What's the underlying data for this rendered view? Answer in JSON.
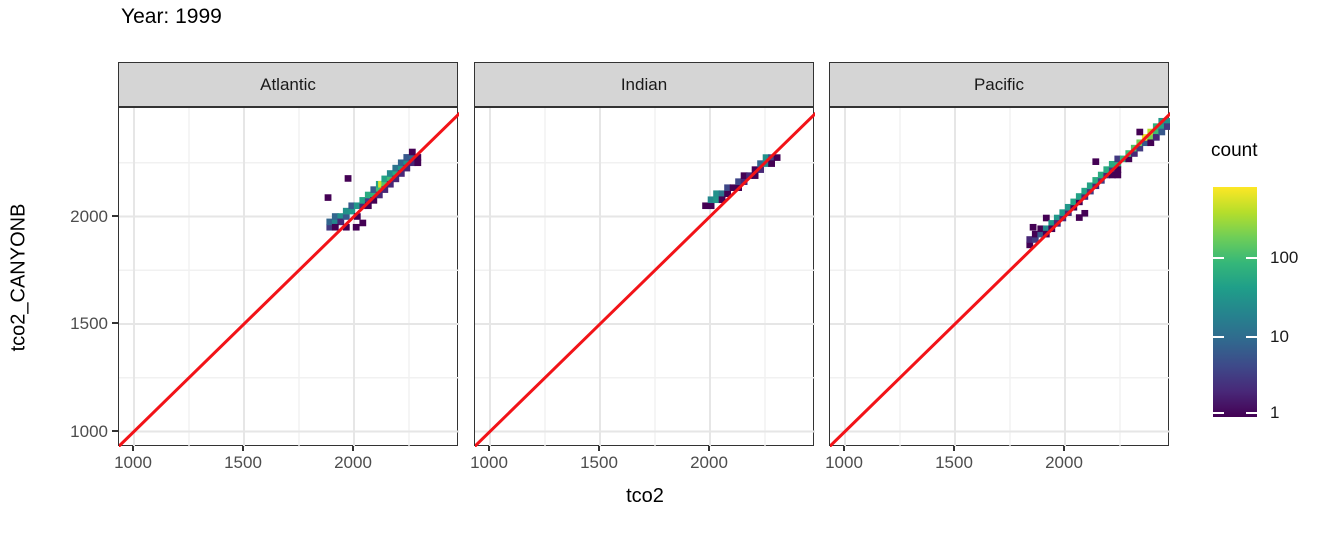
{
  "title": "Year: 1999",
  "colors": {
    "strip_bg": "#d5d5d5",
    "panel_border": "#333333",
    "grid_major": "#e6e6e6",
    "grid_minor": "#f1f1f1",
    "tick_text": "#4d4d4d",
    "reference_line_red": "#f21318",
    "viridis": [
      "#440154",
      "#482878",
      "#3e4989",
      "#31688e",
      "#26828e",
      "#1f9e89",
      "#35b779",
      "#6ece58",
      "#b5de2b",
      "#fde725"
    ]
  },
  "chart_data": {
    "type": "heatmap",
    "variant": "2d-bin-count (geom_bin2d), 3 facets",
    "title": "Year: 1999",
    "xlabel": "tco2",
    "ylabel": "tco2_CANYONB",
    "facet_labels": [
      "Atlantic",
      "Indian",
      "Pacific"
    ],
    "x_ticks": [
      1000,
      1500,
      2000
    ],
    "y_ticks": [
      1000,
      1500,
      2000
    ],
    "x_minor_ticks": [
      1250,
      1750,
      2250
    ],
    "y_minor_ticks": [
      1250,
      1750,
      2250
    ],
    "xlim": [
      930,
      2480
    ],
    "ylim": [
      930,
      2505
    ],
    "grid": true,
    "bin_width": 25,
    "reference_line": {
      "type": "identity",
      "equation": "y = x",
      "color": "#f21318"
    },
    "legend": {
      "title": "count",
      "position": "right",
      "scale": "log10",
      "colormap": "viridis",
      "max_count": 600,
      "ticks": [
        {
          "label": "100",
          "frac_from_top": 0.309
        },
        {
          "label": "10",
          "frac_from_top": 0.652
        },
        {
          "label": "1",
          "frac_from_top": 0.983
        }
      ]
    },
    "facets": [
      {
        "label": "Atlantic",
        "bins": [
          [
            1890,
            1950,
            3
          ],
          [
            1890,
            1975,
            8
          ],
          [
            1915,
            1975,
            20
          ],
          [
            1915,
            2000,
            8
          ],
          [
            1940,
            2000,
            25
          ],
          [
            1940,
            1975,
            2
          ],
          [
            1965,
            2000,
            6
          ],
          [
            1965,
            2025,
            25
          ],
          [
            1990,
            2025,
            30
          ],
          [
            1990,
            2050,
            6
          ],
          [
            2015,
            2050,
            30
          ],
          [
            2040,
            2050,
            2
          ],
          [
            2040,
            2075,
            40
          ],
          [
            2065,
            2075,
            3
          ],
          [
            2065,
            2100,
            50
          ],
          [
            2090,
            2100,
            60
          ],
          [
            2090,
            2125,
            6
          ],
          [
            2115,
            2125,
            80
          ],
          [
            2115,
            2150,
            40
          ],
          [
            2125,
            2150,
            400
          ],
          [
            2140,
            2150,
            100
          ],
          [
            2140,
            2175,
            40
          ],
          [
            2165,
            2175,
            80
          ],
          [
            2165,
            2200,
            20
          ],
          [
            2190,
            2200,
            50
          ],
          [
            2190,
            2225,
            12
          ],
          [
            2215,
            2225,
            30
          ],
          [
            2215,
            2250,
            8
          ],
          [
            2240,
            2250,
            25
          ],
          [
            2240,
            2275,
            6
          ],
          [
            2265,
            2275,
            8
          ],
          [
            1915,
            1950,
            1
          ],
          [
            1965,
            1950,
            1
          ],
          [
            2010,
            1950,
            1
          ],
          [
            2040,
            1970,
            1
          ],
          [
            2015,
            2000,
            1
          ],
          [
            2065,
            2050,
            1
          ],
          [
            2090,
            2075,
            1
          ],
          [
            2115,
            2100,
            2
          ],
          [
            2140,
            2125,
            2
          ],
          [
            2165,
            2150,
            2
          ],
          [
            2190,
            2175,
            2
          ],
          [
            2215,
            2200,
            2
          ],
          [
            2240,
            2225,
            2
          ],
          [
            2265,
            2250,
            2
          ],
          [
            2290,
            2275,
            1
          ],
          [
            2265,
            2300,
            1
          ],
          [
            2290,
            2250,
            1
          ],
          [
            1973,
            2177,
            1
          ],
          [
            1882,
            2088,
            1
          ]
        ]
      },
      {
        "label": "Indian",
        "bins": [
          [
            1980,
            2050,
            1
          ],
          [
            2005,
            2050,
            1
          ],
          [
            2005,
            2078,
            20
          ],
          [
            2030,
            2078,
            30
          ],
          [
            2030,
            2106,
            25
          ],
          [
            2055,
            2106,
            12
          ],
          [
            2055,
            2078,
            1
          ],
          [
            2080,
            2106,
            1
          ],
          [
            2080,
            2134,
            4
          ],
          [
            2105,
            2134,
            1
          ],
          [
            2130,
            2134,
            1
          ],
          [
            2130,
            2162,
            4
          ],
          [
            2155,
            2162,
            2
          ],
          [
            2155,
            2190,
            1
          ],
          [
            2180,
            2190,
            2
          ],
          [
            2205,
            2190,
            1
          ],
          [
            2205,
            2218,
            1
          ],
          [
            2230,
            2218,
            2
          ],
          [
            2230,
            2246,
            8
          ],
          [
            2255,
            2246,
            20
          ],
          [
            2255,
            2274,
            25
          ],
          [
            2280,
            2274,
            4
          ],
          [
            2280,
            2246,
            1
          ],
          [
            2305,
            2274,
            1
          ]
        ]
      },
      {
        "label": "Pacific",
        "bins": [
          [
            1840,
            1868,
            1
          ],
          [
            1840,
            1893,
            2
          ],
          [
            1865,
            1893,
            3
          ],
          [
            1865,
            1918,
            1
          ],
          [
            1855,
            1950,
            1
          ],
          [
            1890,
            1918,
            6
          ],
          [
            1890,
            1943,
            1
          ],
          [
            1915,
            1943,
            20
          ],
          [
            1915,
            1918,
            1
          ],
          [
            1915,
            1993,
            1
          ],
          [
            1940,
            1968,
            30
          ],
          [
            1940,
            1943,
            1
          ],
          [
            1965,
            1993,
            30
          ],
          [
            1965,
            1968,
            2
          ],
          [
            1990,
            1993,
            2
          ],
          [
            1990,
            2018,
            30
          ],
          [
            2015,
            2018,
            2
          ],
          [
            2015,
            2043,
            30
          ],
          [
            2040,
            2043,
            1
          ],
          [
            2040,
            2068,
            40
          ],
          [
            2065,
            2068,
            1
          ],
          [
            2065,
            2093,
            40
          ],
          [
            2090,
            2093,
            2
          ],
          [
            2090,
            2118,
            40
          ],
          [
            2115,
            2118,
            3
          ],
          [
            2115,
            2143,
            40
          ],
          [
            2140,
            2143,
            2
          ],
          [
            2140,
            2168,
            50
          ],
          [
            2165,
            2168,
            3
          ],
          [
            2165,
            2193,
            50
          ],
          [
            2190,
            2193,
            2
          ],
          [
            2190,
            2218,
            50
          ],
          [
            2215,
            2218,
            3
          ],
          [
            2215,
            2243,
            50
          ],
          [
            2240,
            2243,
            60
          ],
          [
            2240,
            2268,
            3
          ],
          [
            2265,
            2268,
            60
          ],
          [
            2290,
            2268,
            1
          ],
          [
            2290,
            2293,
            80
          ],
          [
            2315,
            2293,
            2
          ],
          [
            2315,
            2318,
            100
          ],
          [
            2340,
            2318,
            3
          ],
          [
            2340,
            2343,
            150
          ],
          [
            2365,
            2343,
            6
          ],
          [
            2365,
            2368,
            500
          ],
          [
            2390,
            2368,
            150
          ],
          [
            2390,
            2393,
            300
          ],
          [
            2415,
            2393,
            80
          ],
          [
            2415,
            2418,
            60
          ],
          [
            2440,
            2418,
            40
          ],
          [
            2440,
            2443,
            30
          ],
          [
            2465,
            2443,
            25
          ],
          [
            2140,
            2255,
            1
          ],
          [
            2065,
            1995,
            1
          ],
          [
            2090,
            2015,
            1
          ],
          [
            2215,
            2193,
            1
          ],
          [
            2240,
            2218,
            1
          ],
          [
            2240,
            2193,
            1
          ],
          [
            2340,
            2393,
            1
          ],
          [
            2390,
            2343,
            1
          ],
          [
            2415,
            2368,
            2
          ],
          [
            2440,
            2393,
            6
          ],
          [
            2465,
            2418,
            3
          ]
        ]
      }
    ]
  }
}
